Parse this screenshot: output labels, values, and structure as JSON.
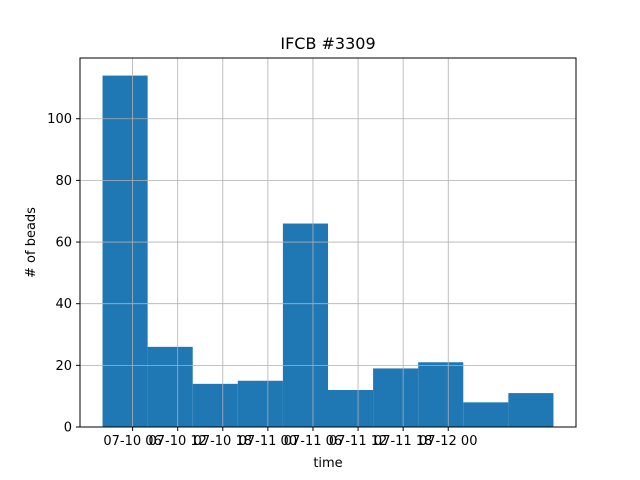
{
  "chart_data": {
    "type": "bar",
    "title": "IFCB #3309",
    "xlabel": "time",
    "ylabel": "# of beads",
    "bins": [
      {
        "start": "07-10 02",
        "end": "07-10 08",
        "count": 114
      },
      {
        "start": "07-10 08",
        "end": "07-10 14",
        "count": 26
      },
      {
        "start": "07-10 14",
        "end": "07-10 20",
        "count": 14
      },
      {
        "start": "07-10 20",
        "end": "07-11 02",
        "count": 15
      },
      {
        "start": "07-11 02",
        "end": "07-11 08",
        "count": 66
      },
      {
        "start": "07-11 08",
        "end": "07-11 14",
        "count": 12
      },
      {
        "start": "07-11 14",
        "end": "07-11 20",
        "count": 19
      },
      {
        "start": "07-11 20",
        "end": "07-12 02",
        "count": 21
      },
      {
        "start": "07-12 02",
        "end": "07-12 08",
        "count": 8
      },
      {
        "start": "07-12 08",
        "end": "07-12 14",
        "count": 11
      }
    ],
    "xticks": [
      "07-10 06",
      "07-10 12",
      "07-10 18",
      "07-11 00",
      "07-11 06",
      "07-11 12",
      "07-11 18",
      "07-12 00"
    ],
    "yticks": [
      0,
      20,
      40,
      60,
      80,
      100
    ],
    "ylim": [
      0,
      119.7
    ],
    "grid": true,
    "bar_color": "#1f77b4",
    "grid_color": "#b0b0b0"
  }
}
